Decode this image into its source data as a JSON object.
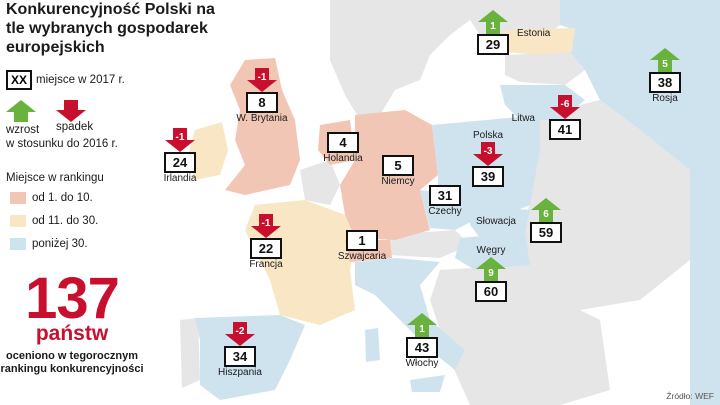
{
  "title": "Konkurencyjność Polski na tle wybranych gospodarek europejskich",
  "legend": {
    "place_key": "XX",
    "place_text": "miejsce w 2017 r.",
    "rise_label": "wzrost",
    "fall_label": "spadek",
    "compare_text": "w stosunku do 2016 r.",
    "rank_title": "Miejsce w rankingu",
    "ranges": [
      {
        "label": "od 1. do 10.",
        "color": "#f2c6b4"
      },
      {
        "label": "od 11. do 30.",
        "color": "#f8e6c4"
      },
      {
        "label": "poniżej 30.",
        "color": "#cfe3ef"
      }
    ]
  },
  "summary": {
    "number": "137",
    "unit": "państw",
    "text": "oceniono w tegorocznym rankingu konkurencyjności"
  },
  "source": "Źródło: WEF",
  "colors": {
    "rise": "#6ab23e",
    "fall": "#c8102e",
    "sea": "#ffffff",
    "land_gray": "#e6e6e6"
  },
  "countries": [
    {
      "name": "Estonia",
      "rank": "29",
      "change": "1",
      "direction": "up"
    },
    {
      "name": "Rosja",
      "rank": "38",
      "change": "5",
      "direction": "up"
    },
    {
      "name": "W. Brytania",
      "rank": "8",
      "change": "-1",
      "direction": "down"
    },
    {
      "name": "Litwa",
      "rank": "41",
      "change": "-6",
      "direction": "down"
    },
    {
      "name": "Irlandia",
      "rank": "24",
      "change": "-1",
      "direction": "down"
    },
    {
      "name": "Holandia",
      "rank": "4",
      "change": "",
      "direction": "none"
    },
    {
      "name": "Niemcy",
      "rank": "5",
      "change": "",
      "direction": "none"
    },
    {
      "name": "Polska",
      "rank": "39",
      "change": "-3",
      "direction": "down"
    },
    {
      "name": "Czechy",
      "rank": "31",
      "change": "",
      "direction": "none"
    },
    {
      "name": "Słowacja",
      "rank": "59",
      "change": "6",
      "direction": "up"
    },
    {
      "name": "Francja",
      "rank": "22",
      "change": "-1",
      "direction": "down"
    },
    {
      "name": "Szwajcaria",
      "rank": "1",
      "change": "",
      "direction": "none"
    },
    {
      "name": "Węgry",
      "rank": "60",
      "change": "9",
      "direction": "up"
    },
    {
      "name": "Włochy",
      "rank": "43",
      "change": "1",
      "direction": "up"
    },
    {
      "name": "Hiszpania",
      "rank": "34",
      "change": "-2",
      "direction": "down"
    }
  ]
}
